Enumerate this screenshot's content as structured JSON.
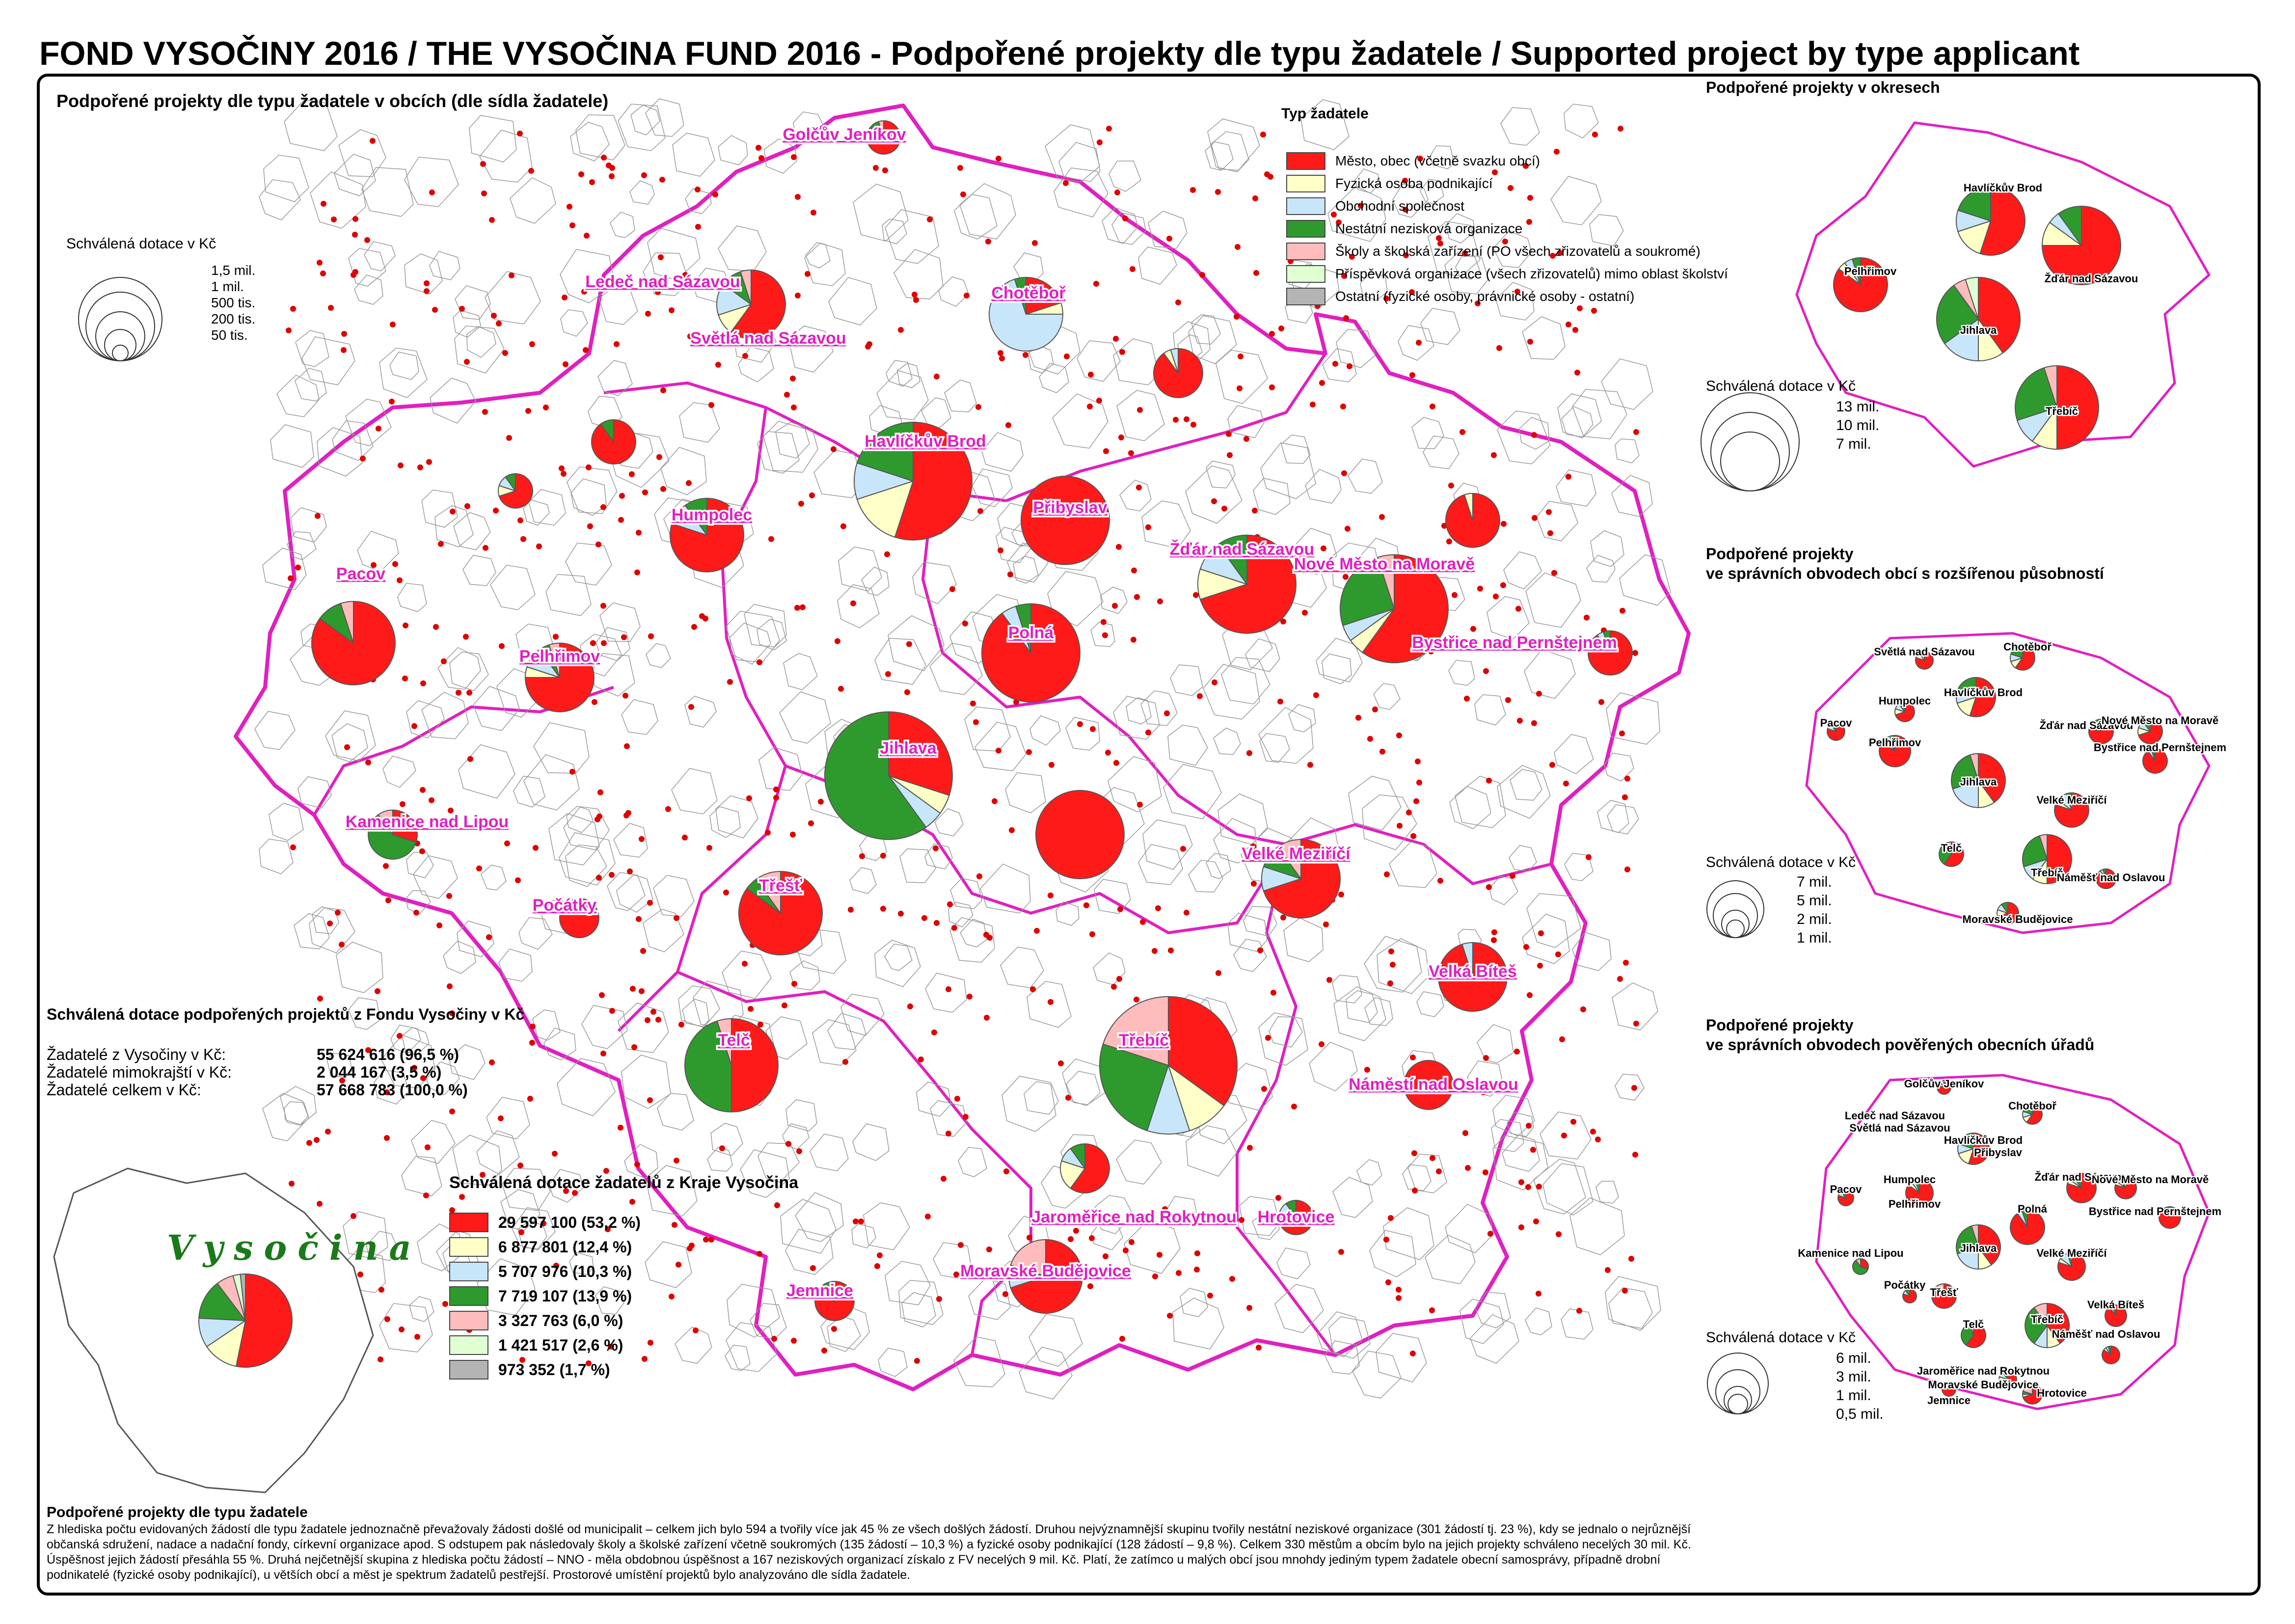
{
  "title": "FOND VYSOČINY 2016 / THE VYSOČINA FUND 2016 - Podpořené projekty dle typu žadatele / Supported project by type applicant",
  "colors": {
    "mesto": "#ff1a1a",
    "fo": "#ffffc8",
    "os": "#c8e6fa",
    "nno": "#2e9a2e",
    "skoly": "#ffbcbc",
    "po": "#e0ffd2",
    "ostatni": "#b4b4b4",
    "boundary": "#e020c0"
  },
  "main_map": {
    "title": "Podpořené projekty dle typu žadatele v obcích (dle sídla žadatele)",
    "size_legend_title": "Schválená dotace v Kč",
    "size_legend_values": [
      "1,5 mil.",
      "1 mil.",
      "500 tis.",
      "200 tis.",
      "50 tis."
    ],
    "town_labels": [
      "Golčův Jeníkov",
      "Ledeč nad Sázavou",
      "Světlá nad Sázavou",
      "Chotěboř",
      "Havlíčkův Brod",
      "Humpolec",
      "Přibyslav",
      "Žďár nad Sázavou",
      "Nové Město na Moravě",
      "Pacov",
      "Pelhřimov",
      "Bystřice nad Pernštejnem",
      "Polná",
      "Jihlava",
      "Kamenice nad Lipou",
      "Třešť",
      "Velké Meziříčí",
      "Počátky",
      "Velká Bíteš",
      "Telč",
      "Třebíč",
      "Náměstí nad Oslavou",
      "Jaroměřice nad Rokytnou",
      "Hrotovice",
      "Moravské Budějovice",
      "Jemnice"
    ]
  },
  "applicant_legend": {
    "title": "Typ žadatele",
    "items": [
      "Město, obec (včetně svazku obcí)",
      "Fyzická osoba podnikající",
      "Obchodní společnost",
      "Nestátní nezisková organizace",
      "Školy a školská zařízení (PO všech zřizovatelů a soukromé)",
      "Příspěvková organizace (všech zřizovatelů) mimo oblast školství",
      "Ostatní (fyzické osoby, právnické osoby - ostatní)"
    ]
  },
  "summary": {
    "title": "Schválená dotace podpořených projektů z Fondu Vysočiny v Kč",
    "rows": [
      {
        "label": "Žadatelé z Vysočiny v Kč:",
        "value": "55 624 616",
        "pct": "(96,5 %)"
      },
      {
        "label": "Žadatelé mimokrajští v Kč:",
        "value": "2 044 167",
        "pct": "(3,5 %)"
      },
      {
        "label": "Žadatelé celkem v Kč:",
        "value": "57 668 783",
        "pct": "(100,0 %)"
      }
    ]
  },
  "region_legend": {
    "title": "Schválená dotace žadatelů z Kraje Vysočina",
    "rows": [
      "29 597 100 (53,2 %)",
      "6 877 801 (12,4 %)",
      "5 707 976 (10,3 %)",
      "7 719 107 (13,9 %)",
      "3 327 763   (6,0 %)",
      "1 421 517   (2,6 %)",
      "973 352   (1,7 %)"
    ],
    "region_name": "Vysočina"
  },
  "chart_data": {
    "type": "pie",
    "categories": [
      "Město, obec (včetně svazku obcí)",
      "Fyzická osoba podnikající",
      "Obchodní společnost",
      "Nestátní nezisková organizace",
      "Školy a školská zařízení (PO všech zřizovatelů a soukromé)",
      "Příspěvková organizace (všech zřizovatelů) mimo oblast školství",
      "Ostatní (fyzické osoby, právnické osoby - ostatní)"
    ],
    "values": [
      29597100,
      6877801,
      5707976,
      7719107,
      3327763,
      1421517,
      973352
    ],
    "title": "Schválená dotace žadatelů z Kraje Vysočina"
  },
  "districts": {
    "title": "Podpořené projekty v okresech",
    "size_legend_title": "Schválená dotace v Kč",
    "size_legend_values": [
      "13 mil.",
      "10 mil.",
      "7 mil."
    ],
    "labels": [
      "Havlíčkův Brod",
      "Pelhřimov",
      "Žďár nad Sázavou",
      "Jihlava",
      "Třebíč"
    ]
  },
  "orp": {
    "title_line1": "Podpořené projekty",
    "title_line2": "ve správních obvodech obcí s rozšířenou působností",
    "size_legend_title": "Schválená dotace v Kč",
    "size_legend_values": [
      "7 mil.",
      "5 mil.",
      "2 mil.",
      "1 mil."
    ],
    "labels": [
      "Světlá nad Sázavou",
      "Chotěboř",
      "Havlíčkův Brod",
      "Humpolec",
      "Žďár nad Sázavou",
      "Nové Město na Moravě",
      "Pacov",
      "Pelhřimov",
      "Bystřice nad Pernštejnem",
      "Jihlava",
      "Velké Meziříčí",
      "Telč",
      "Třebíč",
      "Náměšť nad Oslavou",
      "Moravské Budějovice"
    ]
  },
  "pou": {
    "title_line1": "Podpořené projekty",
    "title_line2": "ve správních obvodech pověřených obecních úřadů",
    "size_legend_title": "Schválená dotace v Kč",
    "size_legend_values": [
      "6 mil.",
      "3 mil.",
      "1 mil.",
      "0,5 mil."
    ],
    "labels": [
      "Golčův Jeníkov",
      "Ledeč nad Sázavou",
      "Světlá nad Sázavou",
      "Chotěboř",
      "Havlíčkův Brod",
      "Přibyslav",
      "Humpolec",
      "Žďár nad Sázavou",
      "Nové Město na Moravě",
      "Pacov",
      "Pelhřimov",
      "Bystřice nad Pernštejnem",
      "Polná",
      "Jihlava",
      "Kamenice nad Lipou",
      "Počátky",
      "Velké Meziříčí",
      "Třešť",
      "Telč",
      "Velká Bíteš",
      "Třebíč",
      "Náměšť nad Oslavou",
      "Jaroměřice nad Rokytnou",
      "Moravské Budějovice",
      "Hrotovice",
      "Jemnice"
    ]
  },
  "footnote": {
    "heading": "Podpořené projekty dle typu žadatele",
    "text": "Z hlediska počtu evidovaných žádostí dle typu žadatele jednoznačně převažovaly žádosti došlé od municipalit – celkem jich bylo 594 a tvořily více jak 45 % ze všech došlých žádostí. Druhou nejvýznamnější skupinu tvořily nestátní neziskové organizace (301 žádostí tj. 23 %), kdy se jednalo o nejrůznější občanská sdružení, nadace a nadační fondy, církevní organizace apod. S odstupem pak následovaly školy a školské zařízení včetně soukromých (135 žádostí – 10,3 %) a fyzické osoby podnikající (128 žádostí – 9,8 %). Celkem 330 městům a obcím bylo na jejich projekty schváleno necelých 30 mil. Kč. Úspěšnost jejich žádostí přesáhla 55 %. Druhá nejčetnější skupina z hlediska počtu žádostí – NNO - měla obdobnou úspěšnost a 167 neziskových organizací získalo z FV necelých 9 mil. Kč. Platí, že zatímco u malých obcí jsou mnohdy jediným typem žadatele obecní samosprávy, případně drobní podnikatelé (fyzické osoby podnikající), u větších obcí a měst je spektrum žadatelů pestřejší. Prostorové umístění projektů bylo analyzováno dle sídla žadatele."
  }
}
